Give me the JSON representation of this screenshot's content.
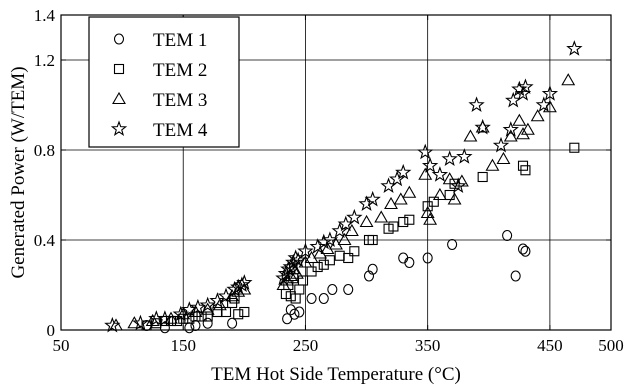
{
  "chart_data": {
    "type": "scatter",
    "title": "",
    "xlabel": "TEM Hot Side Temperature (°C)",
    "ylabel": "Generated Power (W/TEM)",
    "xlim": [
      50,
      500
    ],
    "ylim": [
      0,
      1.4
    ],
    "x_ticks": [
      50,
      150,
      250,
      350,
      450,
      500
    ],
    "x_tick_labels": [
      "50",
      "150",
      "250",
      "350",
      "450",
      "500"
    ],
    "y_ticks": [
      0,
      0.4,
      0.8,
      1.2,
      1.4
    ],
    "y_tick_labels": [
      "0",
      "0.4",
      "0.8",
      "1.2",
      "1.4"
    ],
    "x_grid": [
      150,
      250,
      350,
      450
    ],
    "y_grid": [
      0.4,
      0.8,
      1.2
    ],
    "grid": true,
    "legend_position": "top-left",
    "series": [
      {
        "name": "TEM 1",
        "marker": "circle",
        "points": [
          [
            120,
            0.02
          ],
          [
            135,
            0.01
          ],
          [
            155,
            0.01
          ],
          [
            160,
            0.02
          ],
          [
            170,
            0.03
          ],
          [
            190,
            0.03
          ],
          [
            235,
            0.05
          ],
          [
            238,
            0.09
          ],
          [
            241,
            0.07
          ],
          [
            245,
            0.08
          ],
          [
            255,
            0.14
          ],
          [
            265,
            0.14
          ],
          [
            272,
            0.18
          ],
          [
            285,
            0.18
          ],
          [
            302,
            0.24
          ],
          [
            305,
            0.27
          ],
          [
            330,
            0.32
          ],
          [
            335,
            0.3
          ],
          [
            350,
            0.32
          ],
          [
            370,
            0.38
          ],
          [
            415,
            0.42
          ],
          [
            422,
            0.24
          ],
          [
            428,
            0.36
          ],
          [
            430,
            0.35
          ]
        ]
      },
      {
        "name": "TEM 2",
        "marker": "square",
        "points": [
          [
            120,
            0.02
          ],
          [
            128,
            0.03
          ],
          [
            135,
            0.04
          ],
          [
            140,
            0.04
          ],
          [
            145,
            0.04
          ],
          [
            150,
            0.05
          ],
          [
            155,
            0.05
          ],
          [
            160,
            0.06
          ],
          [
            165,
            0.06
          ],
          [
            170,
            0.06
          ],
          [
            178,
            0.08
          ],
          [
            185,
            0.08
          ],
          [
            190,
            0.12
          ],
          [
            192,
            0.14
          ],
          [
            195,
            0.07
          ],
          [
            200,
            0.08
          ],
          [
            234,
            0.16
          ],
          [
            236,
            0.2
          ],
          [
            238,
            0.15
          ],
          [
            240,
            0.23
          ],
          [
            242,
            0.14
          ],
          [
            245,
            0.18
          ],
          [
            248,
            0.22
          ],
          [
            255,
            0.26
          ],
          [
            260,
            0.28
          ],
          [
            265,
            0.29
          ],
          [
            270,
            0.31
          ],
          [
            278,
            0.33
          ],
          [
            285,
            0.32
          ],
          [
            290,
            0.35
          ],
          [
            302,
            0.4
          ],
          [
            305,
            0.4
          ],
          [
            318,
            0.45
          ],
          [
            322,
            0.46
          ],
          [
            330,
            0.48
          ],
          [
            335,
            0.49
          ],
          [
            350,
            0.55
          ],
          [
            355,
            0.57
          ],
          [
            368,
            0.6
          ],
          [
            372,
            0.65
          ],
          [
            395,
            0.68
          ],
          [
            428,
            0.73
          ],
          [
            430,
            0.71
          ],
          [
            470,
            0.81
          ]
        ]
      },
      {
        "name": "TEM 3",
        "marker": "triangle",
        "points": [
          [
            95,
            0.02
          ],
          [
            110,
            0.03
          ],
          [
            125,
            0.04
          ],
          [
            140,
            0.05
          ],
          [
            150,
            0.07
          ],
          [
            160,
            0.08
          ],
          [
            170,
            0.09
          ],
          [
            180,
            0.11
          ],
          [
            190,
            0.15
          ],
          [
            195,
            0.17
          ],
          [
            200,
            0.18
          ],
          [
            232,
            0.2
          ],
          [
            235,
            0.22
          ],
          [
            238,
            0.24
          ],
          [
            240,
            0.27
          ],
          [
            243,
            0.25
          ],
          [
            250,
            0.3
          ],
          [
            255,
            0.32
          ],
          [
            262,
            0.34
          ],
          [
            268,
            0.36
          ],
          [
            275,
            0.38
          ],
          [
            282,
            0.4
          ],
          [
            288,
            0.44
          ],
          [
            300,
            0.48
          ],
          [
            312,
            0.5
          ],
          [
            320,
            0.56
          ],
          [
            328,
            0.58
          ],
          [
            335,
            0.61
          ],
          [
            348,
            0.69
          ],
          [
            350,
            0.52
          ],
          [
            352,
            0.49
          ],
          [
            360,
            0.6
          ],
          [
            368,
            0.67
          ],
          [
            372,
            0.58
          ],
          [
            378,
            0.66
          ],
          [
            385,
            0.86
          ],
          [
            395,
            0.9
          ],
          [
            403,
            0.73
          ],
          [
            412,
            0.76
          ],
          [
            418,
            0.86
          ],
          [
            425,
            0.93
          ],
          [
            428,
            0.87
          ],
          [
            432,
            0.89
          ],
          [
            440,
            0.95
          ],
          [
            450,
            0.99
          ],
          [
            465,
            1.11
          ]
        ]
      },
      {
        "name": "TEM 4",
        "marker": "star",
        "points": [
          [
            92,
            0.02
          ],
          [
            115,
            0.03
          ],
          [
            128,
            0.05
          ],
          [
            135,
            0.05
          ],
          [
            148,
            0.07
          ],
          [
            155,
            0.09
          ],
          [
            162,
            0.1
          ],
          [
            170,
            0.11
          ],
          [
            178,
            0.13
          ],
          [
            185,
            0.15
          ],
          [
            192,
            0.18
          ],
          [
            195,
            0.19
          ],
          [
            198,
            0.2
          ],
          [
            200,
            0.21
          ],
          [
            232,
            0.23
          ],
          [
            234,
            0.25
          ],
          [
            236,
            0.27
          ],
          [
            238,
            0.28
          ],
          [
            240,
            0.3
          ],
          [
            242,
            0.32
          ],
          [
            244,
            0.31
          ],
          [
            250,
            0.35
          ],
          [
            260,
            0.37
          ],
          [
            265,
            0.39
          ],
          [
            270,
            0.4
          ],
          [
            278,
            0.44
          ],
          [
            283,
            0.47
          ],
          [
            290,
            0.5
          ],
          [
            300,
            0.56
          ],
          [
            305,
            0.58
          ],
          [
            318,
            0.64
          ],
          [
            325,
            0.67
          ],
          [
            330,
            0.7
          ],
          [
            348,
            0.79
          ],
          [
            352,
            0.73
          ],
          [
            360,
            0.69
          ],
          [
            368,
            0.76
          ],
          [
            375,
            0.64
          ],
          [
            380,
            0.77
          ],
          [
            390,
            1.0
          ],
          [
            395,
            0.9
          ],
          [
            410,
            0.82
          ],
          [
            418,
            0.89
          ],
          [
            420,
            1.02
          ],
          [
            425,
            1.07
          ],
          [
            428,
            1.05
          ],
          [
            430,
            1.08
          ],
          [
            445,
            1.0
          ],
          [
            450,
            1.05
          ],
          [
            470,
            1.25
          ]
        ]
      }
    ]
  }
}
